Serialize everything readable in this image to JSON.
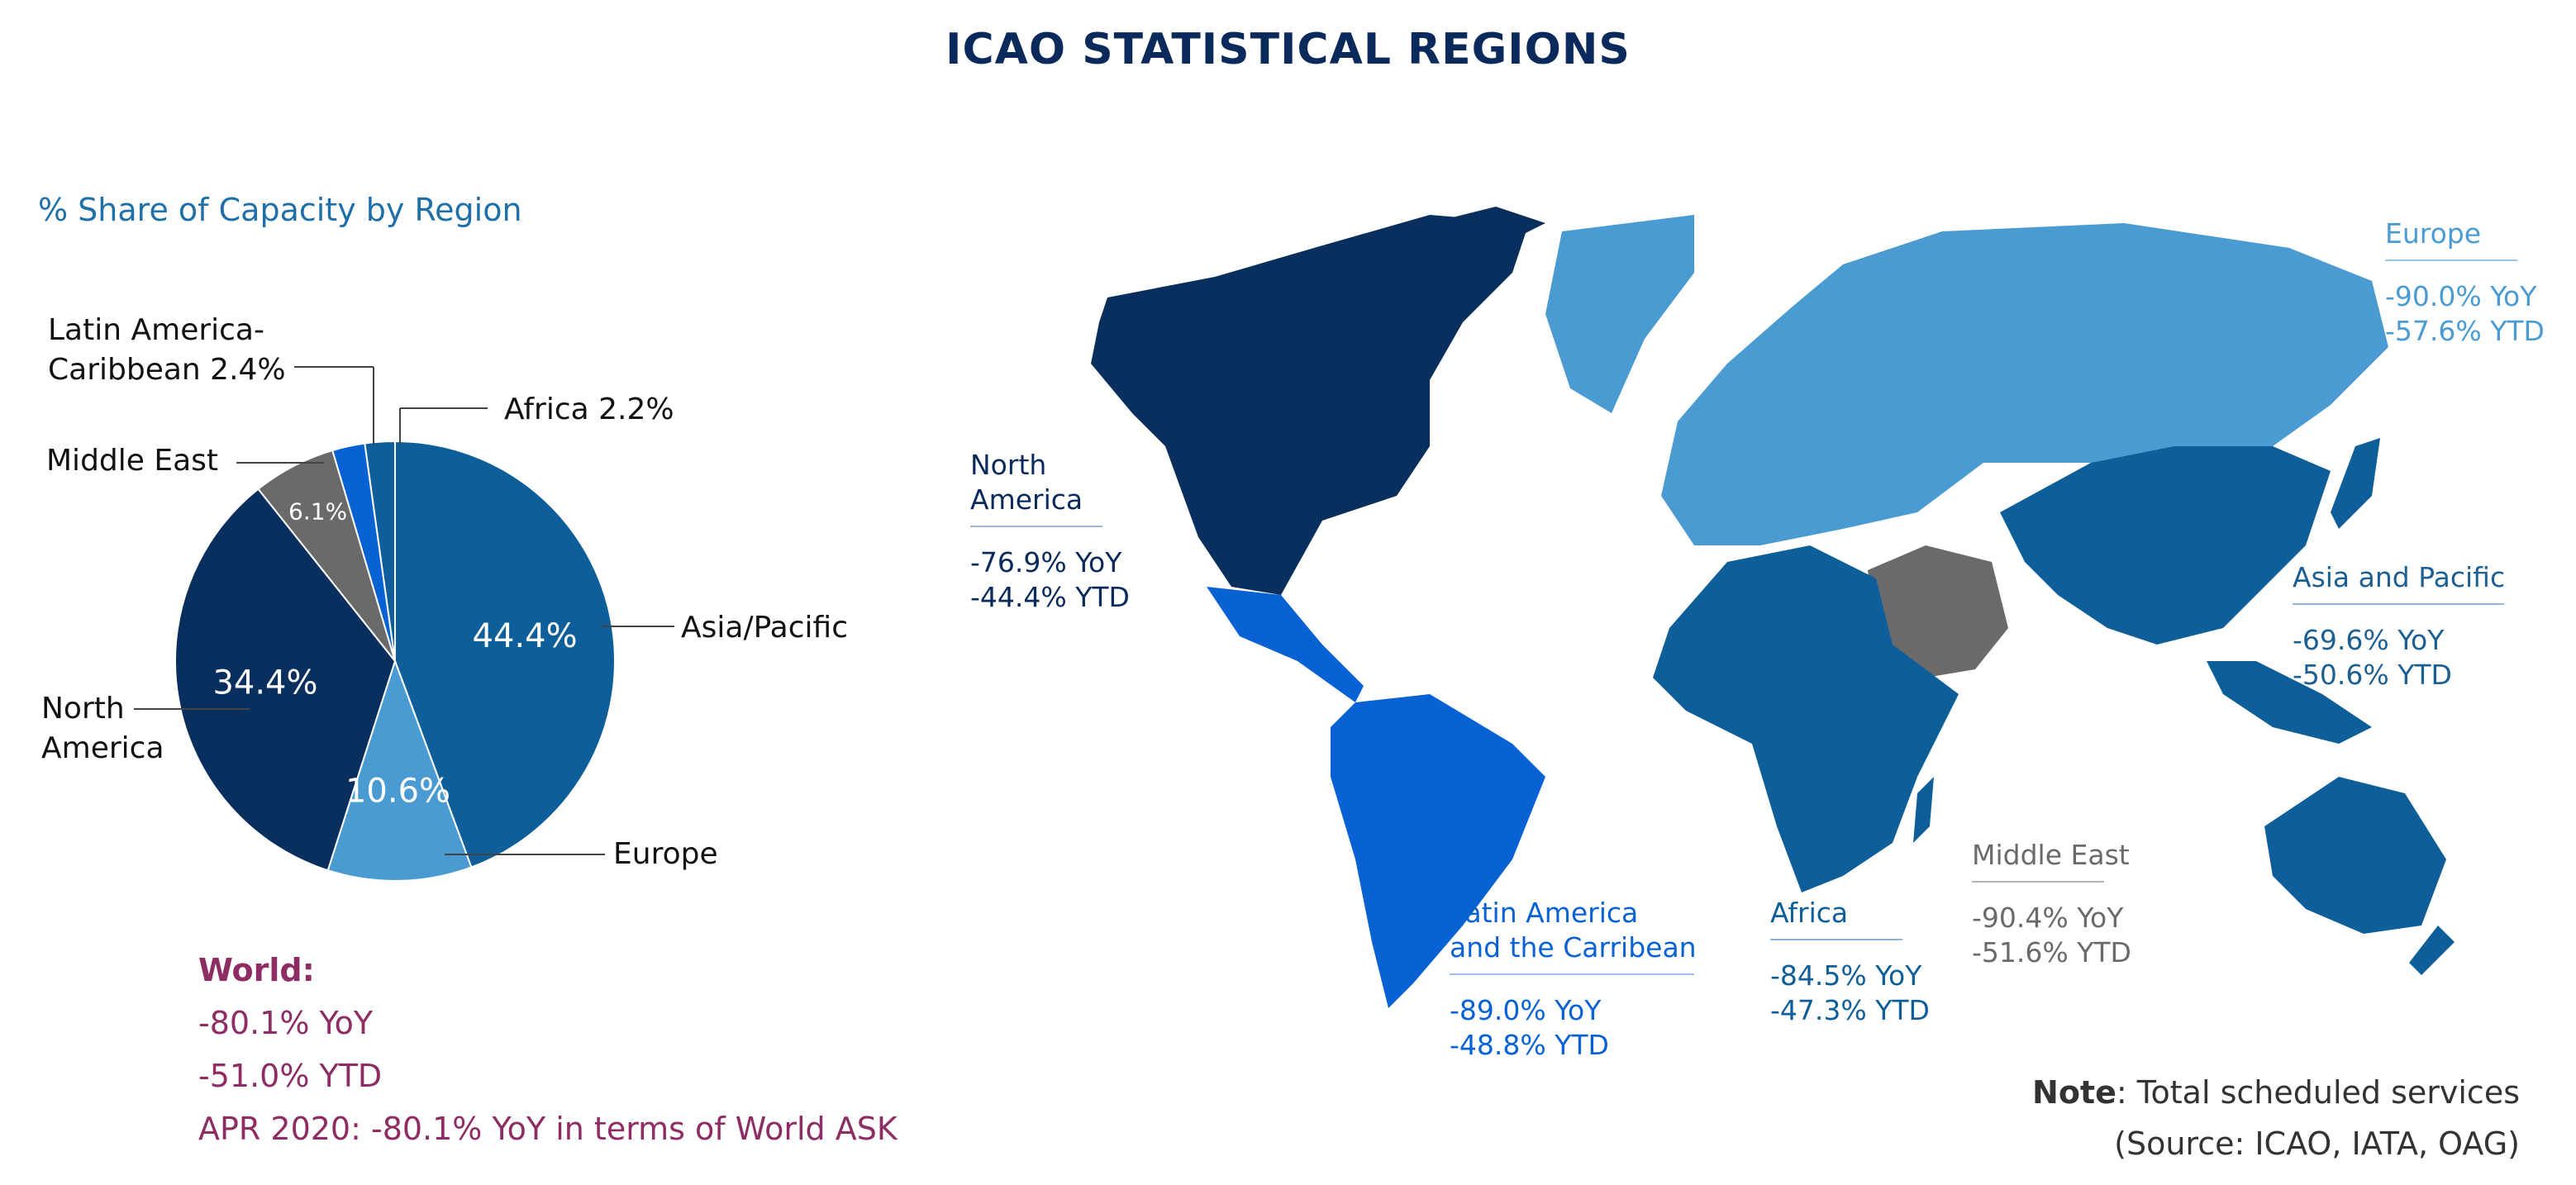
{
  "page": {
    "title": "ICAO STATISTICAL REGIONS"
  },
  "chart_data": {
    "type": "pie",
    "title": "% Share of Capacity by Region",
    "slices": [
      {
        "label": "Asia/Pacific",
        "value": 44.4,
        "inside_label": "44.4%",
        "color": "#0e5f99"
      },
      {
        "label": "Europe",
        "value": 10.6,
        "inside_label": "10.6%",
        "color": "#4a9bd2"
      },
      {
        "label": "North America",
        "value": 34.4,
        "inside_label": "34.4%",
        "color": "#082f5e"
      },
      {
        "label": "Middle East",
        "value": 6.1,
        "inside_label": "6.1%",
        "color": "#6a6a6a"
      },
      {
        "label": "Latin America-Caribbean",
        "value": 2.4,
        "inside_label": "",
        "color": "#0862d3"
      },
      {
        "label": "Africa",
        "value": 2.2,
        "inside_label": "",
        "color": "#0e5f99"
      }
    ],
    "callouts": {
      "latam_line1": "Latin America-",
      "latam_line2": "Caribbean 2.4%",
      "africa": "Africa 2.2%",
      "middle_east": "Middle East",
      "asia": "Asia/Pacific",
      "na_line1": "North",
      "na_line2": "America",
      "europe": "Europe"
    }
  },
  "world": {
    "heading": "World:",
    "yoy": "-80.1% YoY",
    "ytd": "-51.0% YTD",
    "apr": "APR 2020: -80.1% YoY in terms of World ASK"
  },
  "map": {
    "regions": {
      "north_america": {
        "name_line1": "North",
        "name_line2": "America",
        "yoy": "-76.9% YoY",
        "ytd": "-44.4% YTD",
        "color": "#082f5e"
      },
      "europe": {
        "name": "Europe",
        "yoy": "-90.0% YoY",
        "ytd": "-57.6% YTD",
        "color": "#4a9bd2"
      },
      "asia_pacific": {
        "name": "Asia and Pacific",
        "yoy": "-69.6% YoY",
        "ytd": "-50.6% YTD",
        "color": "#0e5f99"
      },
      "latin_america": {
        "name_line1": "Latin America",
        "name_line2": "and the Carribean",
        "yoy": "-89.0% YoY",
        "ytd": "-48.8% YTD",
        "color": "#0862d3"
      },
      "africa": {
        "name": "Africa",
        "yoy": "-84.5% YoY",
        "ytd": "-47.3% YTD",
        "color": "#0e5f99"
      },
      "middle_east": {
        "name": "Middle East",
        "yoy": "-90.4% YoY",
        "ytd": "-51.6% YTD",
        "color": "#6a6a6a"
      }
    }
  },
  "note": {
    "label": "Note",
    "text": ": Total scheduled services",
    "source": "(Source: ICAO, IATA, OAG)"
  }
}
